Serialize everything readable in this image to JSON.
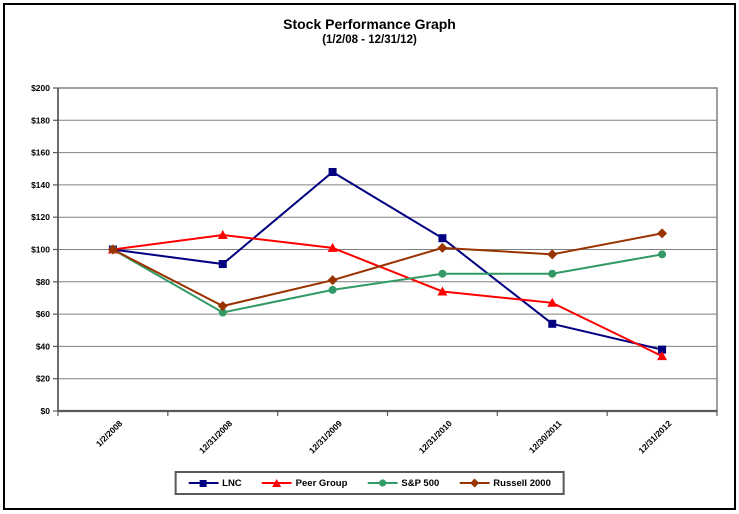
{
  "chart_data": {
    "type": "line",
    "title": "Stock Performance Graph",
    "subtitle": "(1/2/08 - 12/31/12)",
    "categories": [
      "1/2/2008",
      "12/31/2008",
      "12/31/2009",
      "12/31/2010",
      "12/30/2011",
      "12/31/2012"
    ],
    "series": [
      {
        "name": "LNC",
        "color": "#000080",
        "marker": "square",
        "values": [
          100,
          91,
          148,
          107,
          54,
          38
        ]
      },
      {
        "name": "Peer Group",
        "color": "#FF0000",
        "marker": "triangle",
        "values": [
          100,
          109,
          101,
          74,
          67,
          34
        ]
      },
      {
        "name": "S&P 500",
        "color": "#339966",
        "marker": "circle",
        "values": [
          100,
          61,
          75,
          85,
          85,
          97
        ]
      },
      {
        "name": "Russell 2000",
        "color": "#993300",
        "marker": "diamond",
        "values": [
          100,
          65,
          81,
          101,
          97,
          110
        ]
      }
    ],
    "y_axis": {
      "min": 0,
      "max": 200,
      "step": 20,
      "tick_labels": [
        "$0",
        "$20",
        "$40",
        "$60",
        "$80",
        "$100",
        "$120",
        "$140",
        "$160",
        "$180",
        "$200"
      ]
    },
    "grid": true,
    "legend_position": "bottom",
    "colors": {
      "gridline": "#808080",
      "axis": "#595959",
      "plot_border": "#808080",
      "text": "#000000"
    }
  }
}
